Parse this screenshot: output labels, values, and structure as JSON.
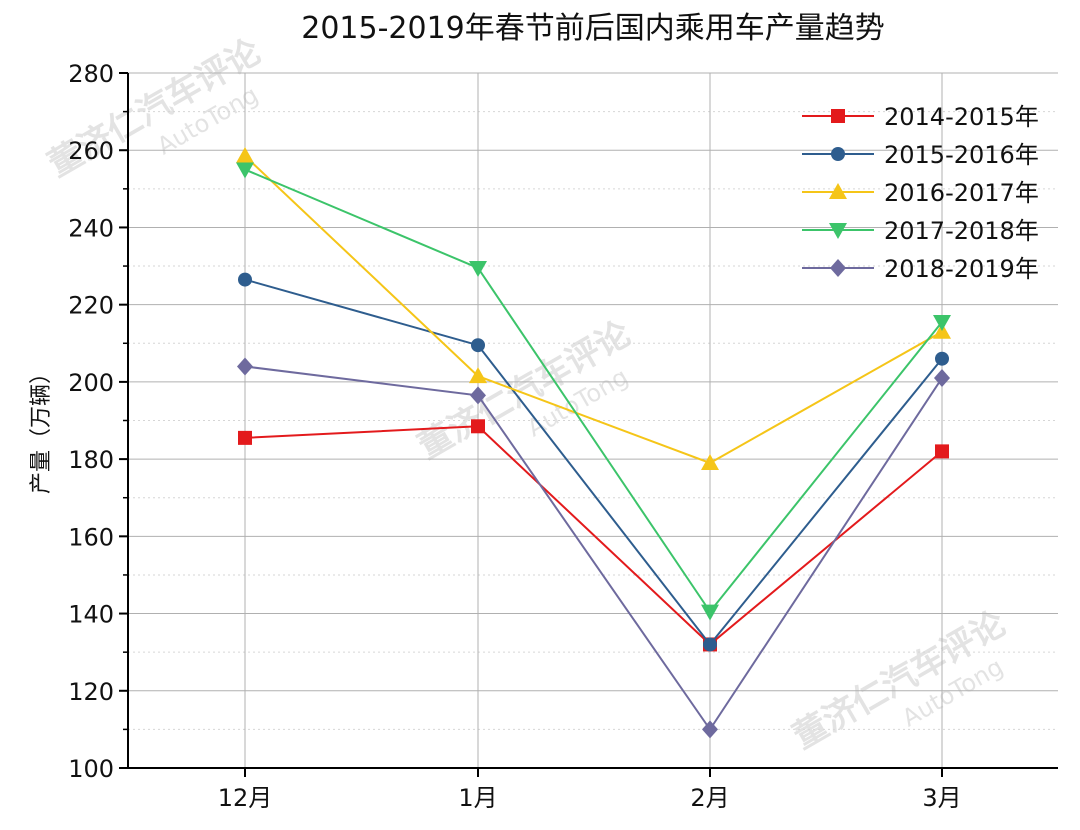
{
  "chart_data": {
    "type": "line",
    "title": "2015-2019年春节前后国内乘用车产量趋势",
    "ylabel": "产量（万辆）",
    "xlabel": "",
    "categories": [
      "12月",
      "1月",
      "2月",
      "3月"
    ],
    "ylim": [
      100,
      280
    ],
    "yticks": [
      100,
      120,
      140,
      160,
      180,
      200,
      220,
      240,
      260,
      280
    ],
    "grid": true,
    "legend_position": "top-right",
    "series": [
      {
        "name": "2014-2015年",
        "color": "#e31a1c",
        "marker": "square",
        "values": [
          185.5,
          188.5,
          132,
          182
        ]
      },
      {
        "name": "2015-2016年",
        "color": "#2e5d8e",
        "marker": "circle",
        "values": [
          226.5,
          209.5,
          132,
          206
        ]
      },
      {
        "name": "2016-2017年",
        "color": "#f5c518",
        "marker": "triangle-up",
        "values": [
          258.5,
          201.5,
          179,
          213
        ]
      },
      {
        "name": "2017-2018年",
        "color": "#3cc46a",
        "marker": "triangle-down",
        "values": [
          255,
          229.5,
          140.5,
          215.5
        ]
      },
      {
        "name": "2018-2019年",
        "color": "#6e6a9e",
        "marker": "diamond",
        "values": [
          204,
          196.5,
          110,
          201
        ]
      }
    ],
    "watermark": {
      "text": "董济仁汽车评论",
      "sub": "AutoTong"
    }
  }
}
